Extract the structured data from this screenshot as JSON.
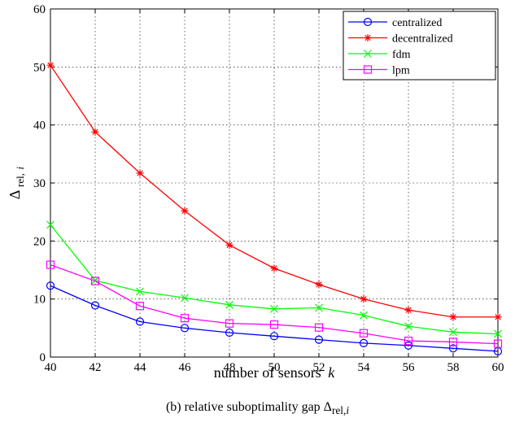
{
  "chart_data": {
    "type": "line",
    "x": [
      40,
      42,
      44,
      46,
      48,
      50,
      52,
      54,
      56,
      58,
      60
    ],
    "xlabel_text": "number of sensors",
    "xlabel_var": "k",
    "ylabel_main": "Δ",
    "ylabel_sub": "rel,",
    "ylabel_sub_var": "i",
    "xlim": [
      40,
      60
    ],
    "ylim": [
      0,
      60
    ],
    "xticks": [
      40,
      42,
      44,
      46,
      48,
      50,
      52,
      54,
      56,
      58,
      60
    ],
    "yticks": [
      0,
      10,
      20,
      30,
      40,
      50,
      60
    ],
    "grid": true,
    "legend_position": "top-right",
    "series": [
      {
        "name": "centralized",
        "color": "#0000ff",
        "marker": "circle",
        "values": [
          12.3,
          8.9,
          6.1,
          5.0,
          4.2,
          3.6,
          3.0,
          2.4,
          2.0,
          1.5,
          1.0
        ]
      },
      {
        "name": "decentralized",
        "color": "#ff0000",
        "marker": "asterisk",
        "values": [
          50.3,
          38.8,
          31.7,
          25.2,
          19.3,
          15.3,
          12.5,
          10.0,
          8.1,
          6.9,
          6.9
        ]
      },
      {
        "name": "fdm",
        "color": "#00ff00",
        "marker": "x",
        "values": [
          22.8,
          13.2,
          11.3,
          10.2,
          9.0,
          8.3,
          8.5,
          7.2,
          5.3,
          4.3,
          4.0
        ]
      },
      {
        "name": "lpm",
        "color": "#ff00ff",
        "marker": "square",
        "values": [
          15.9,
          13.1,
          8.8,
          6.7,
          5.8,
          5.6,
          5.1,
          4.1,
          2.8,
          2.6,
          2.3
        ]
      }
    ]
  },
  "caption": {
    "prefix": "(b) relative suboptimality gap Δ",
    "sub": "rel,",
    "sub_var": "i"
  }
}
